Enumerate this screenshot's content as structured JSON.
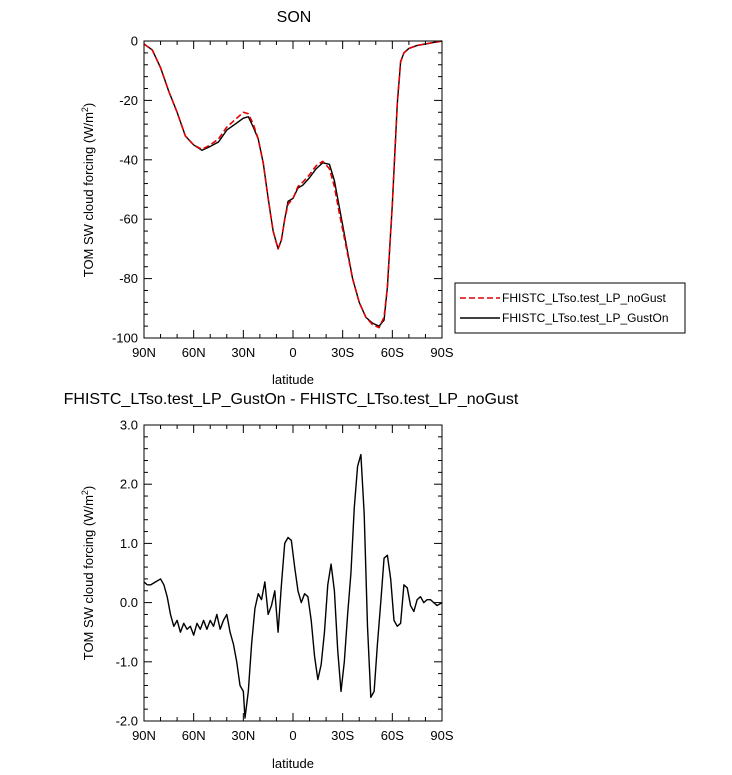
{
  "chart_data": [
    {
      "type": "line",
      "title": "SON",
      "xlabel": "latitude",
      "ylabel": "TOM SW cloud forcing (W/m²)",
      "xlim": [
        90,
        -90
      ],
      "ylim": [
        -100,
        0
      ],
      "x_ticks": [
        90,
        60,
        30,
        0,
        -30,
        -60,
        -90
      ],
      "x_tick_labels": [
        "90N",
        "60N",
        "30N",
        "0",
        "30S",
        "60S",
        "90S"
      ],
      "y_ticks": [
        0,
        -20,
        -40,
        -60,
        -80,
        -100
      ],
      "y_tick_labels": [
        "0",
        "-20",
        "-40",
        "-60",
        "-80",
        "-100"
      ],
      "legend_position": "outside-right",
      "series": [
        {
          "name": "FHISTC_LTso.test_LP_noGust",
          "color": "#e00000",
          "dash": "dashed",
          "x": [
            90,
            85,
            80,
            75,
            70,
            65,
            60,
            55,
            50,
            45,
            40,
            35,
            30,
            27,
            24,
            21,
            18,
            15,
            12,
            9,
            7,
            5,
            3,
            0,
            -3,
            -6,
            -10,
            -14,
            -18,
            -22,
            -25,
            -28,
            -32,
            -36,
            -40,
            -44,
            -48,
            -52,
            -55,
            -57,
            -60,
            -63,
            -65,
            -67,
            -70,
            -75,
            -80,
            -85,
            -90
          ],
          "y": [
            -1,
            -3,
            -9,
            -17,
            -24,
            -32,
            -35,
            -36.5,
            -35,
            -33,
            -29,
            -26.5,
            -24,
            -24.5,
            -28,
            -33,
            -41,
            -53,
            -64,
            -70,
            -67,
            -60,
            -55,
            -53,
            -49,
            -47.5,
            -45,
            -42,
            -40.5,
            -43,
            -49,
            -58,
            -69,
            -80,
            -88,
            -93,
            -95.5,
            -96.5,
            -93,
            -83,
            -55,
            -21,
            -7,
            -4,
            -2.5,
            -1.5,
            -1,
            -0.5,
            0
          ]
        },
        {
          "name": "FHISTC_LTso.test_LP_GustOn",
          "color": "#000000",
          "dash": "solid",
          "x": [
            90,
            85,
            80,
            75,
            70,
            65,
            60,
            55,
            50,
            45,
            40,
            35,
            30,
            27,
            24,
            21,
            18,
            15,
            12,
            9,
            7,
            5,
            3,
            0,
            -3,
            -6,
            -10,
            -14,
            -18,
            -22,
            -25,
            -28,
            -32,
            -36,
            -40,
            -44,
            -48,
            -52,
            -55,
            -57,
            -60,
            -63,
            -65,
            -67,
            -70,
            -75,
            -80,
            -85,
            -90
          ],
          "y": [
            -1,
            -3,
            -9,
            -17,
            -24,
            -32,
            -35,
            -36.8,
            -35.5,
            -34,
            -30,
            -28,
            -26,
            -25.5,
            -29,
            -33,
            -41,
            -53,
            -64,
            -70,
            -67,
            -60,
            -54,
            -53,
            -49.5,
            -48.5,
            -46,
            -43,
            -41,
            -41.5,
            -47,
            -56,
            -68,
            -80,
            -88,
            -93,
            -95,
            -96,
            -94,
            -83,
            -55,
            -21,
            -7,
            -4,
            -2.5,
            -1.5,
            -1,
            -0.5,
            0
          ]
        }
      ]
    },
    {
      "type": "line",
      "title": "FHISTC_LTso.test_LP_GustOn - FHISTC_LTso.test_LP_noGust",
      "xlabel": "latitude",
      "ylabel": "TOM SW cloud forcing (W/m²)",
      "xlim": [
        90,
        -90
      ],
      "ylim": [
        -2,
        3
      ],
      "x_ticks": [
        90,
        60,
        30,
        0,
        -30,
        -60,
        -90
      ],
      "x_tick_labels": [
        "90N",
        "60N",
        "30N",
        "0",
        "30S",
        "60S",
        "90S"
      ],
      "y_ticks": [
        3,
        2,
        1,
        0,
        -1,
        -2
      ],
      "y_tick_labels": [
        "3.0",
        "2.0",
        "1.0",
        "0.0",
        "-1.0",
        "-2.0"
      ],
      "series": [
        {
          "color": "#000000",
          "dash": "solid",
          "x": [
            90,
            88,
            86,
            83,
            80,
            78,
            76,
            74,
            72,
            70,
            68,
            66,
            64,
            62,
            60,
            58,
            56,
            54,
            52,
            50,
            48,
            46,
            44,
            42,
            40,
            38,
            36,
            34,
            32,
            30,
            29,
            27,
            25,
            23,
            21,
            19,
            17,
            15,
            13,
            11,
            9,
            7,
            5,
            3,
            1,
            -1,
            -3,
            -5,
            -7,
            -9,
            -11,
            -13,
            -15,
            -17,
            -19,
            -21,
            -23,
            -25,
            -27,
            -29,
            -31,
            -33,
            -35,
            -37,
            -39,
            -41,
            -43,
            -45,
            -47,
            -49,
            -51,
            -53,
            -55,
            -57,
            -59,
            -61,
            -63,
            -65,
            -67,
            -69,
            -71,
            -73,
            -75,
            -77,
            -79,
            -81,
            -83,
            -85,
            -87,
            -90
          ],
          "y": [
            0.35,
            0.3,
            0.3,
            0.35,
            0.4,
            0.3,
            0.1,
            -0.2,
            -0.4,
            -0.3,
            -0.5,
            -0.35,
            -0.45,
            -0.4,
            -0.55,
            -0.35,
            -0.45,
            -0.3,
            -0.45,
            -0.3,
            -0.4,
            -0.2,
            -0.45,
            -0.3,
            -0.2,
            -0.5,
            -0.7,
            -1.0,
            -1.4,
            -1.5,
            -1.95,
            -1.5,
            -0.7,
            -0.1,
            0.15,
            0.05,
            0.35,
            -0.2,
            -0.05,
            0.2,
            -0.5,
            0.3,
            1.0,
            1.1,
            1.05,
            0.6,
            0.2,
            0.0,
            0.15,
            0.1,
            -0.3,
            -0.9,
            -1.3,
            -1.05,
            -0.5,
            0.3,
            0.65,
            0.2,
            -0.8,
            -1.5,
            -1.0,
            -0.2,
            0.5,
            1.6,
            2.3,
            2.5,
            1.5,
            -0.4,
            -1.6,
            -1.5,
            -0.7,
            0.0,
            0.75,
            0.8,
            0.4,
            -0.3,
            -0.4,
            -0.35,
            0.3,
            0.25,
            -0.05,
            -0.15,
            0.05,
            0.1,
            0.0,
            0.05,
            0.05,
            0.0,
            -0.05,
            0.0
          ]
        }
      ]
    }
  ]
}
